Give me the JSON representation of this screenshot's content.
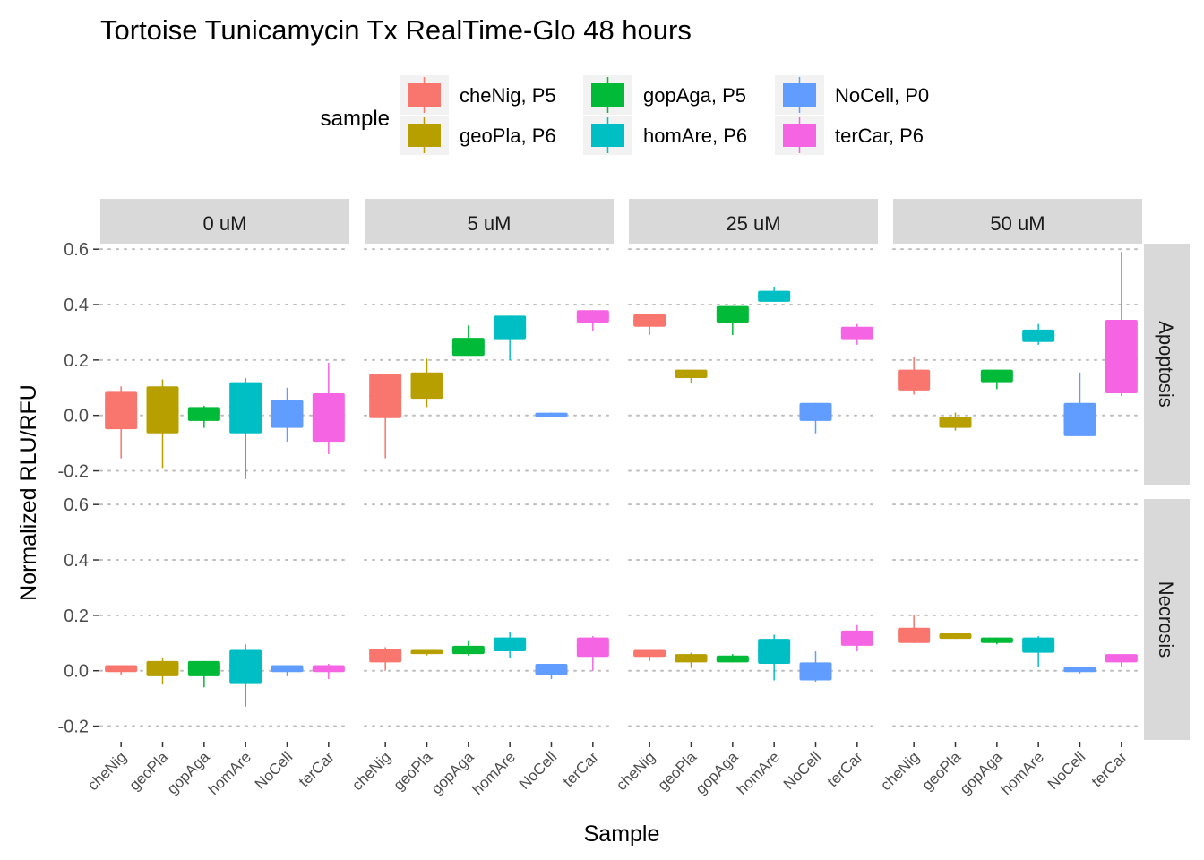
{
  "chart_data": {
    "type": "boxplot",
    "title": "Tortoise Tunicamycin Tx RealTime-Glo 48 hours",
    "xlabel": "Sample",
    "ylabel": "Normalized RLU/RFU",
    "ylim": [
      -0.25,
      0.62
    ],
    "yticks": [
      -0.2,
      0.0,
      0.2,
      0.4,
      0.6
    ],
    "ytick_labels": [
      "-0.2",
      "0.0",
      "0.2",
      "0.4",
      "0.6"
    ],
    "grid": "dotted horizontal",
    "legend": {
      "title": "sample",
      "position": "top",
      "entries": [
        {
          "label": "cheNig, P5",
          "color": "#F8766D"
        },
        {
          "label": "geoPla, P6",
          "color": "#B79F00"
        },
        {
          "label": "gopAga, P5",
          "color": "#00BA38"
        },
        {
          "label": "homAre, P6",
          "color": "#00BFC4"
        },
        {
          "label": "NoCell, P0",
          "color": "#619CFF"
        },
        {
          "label": "terCar, P6",
          "color": "#F564E3"
        }
      ]
    },
    "categories": [
      "cheNig",
      "geoPla",
      "gopAga",
      "homAre",
      "NoCell",
      "terCar"
    ],
    "col_facets": [
      "0 uM",
      "5 uM",
      "25 uM",
      "50 uM"
    ],
    "row_facets": [
      "Apoptosis",
      "Necrosis"
    ],
    "boxes_format": "[ymin, lower, middle, upper, ymax]",
    "panels": [
      {
        "row": "Apoptosis",
        "col": "0 uM",
        "boxes": [
          [
            -0.155,
            -0.05,
            0.02,
            0.085,
            0.105
          ],
          [
            -0.19,
            -0.065,
            0.02,
            0.105,
            0.13
          ],
          [
            -0.045,
            -0.02,
            0.01,
            0.03,
            0.035
          ],
          [
            -0.23,
            -0.065,
            0.03,
            0.12,
            0.135
          ],
          [
            -0.095,
            -0.045,
            0.0,
            0.055,
            0.1
          ],
          [
            -0.14,
            -0.095,
            0.0,
            0.08,
            0.19
          ]
        ]
      },
      {
        "row": "Apoptosis",
        "col": "5 uM",
        "boxes": [
          [
            -0.155,
            -0.01,
            0.07,
            0.15,
            0.15
          ],
          [
            0.03,
            0.06,
            0.1,
            0.155,
            0.205
          ],
          [
            0.215,
            0.215,
            0.25,
            0.28,
            0.325
          ],
          [
            0.2,
            0.275,
            0.31,
            0.36,
            0.36
          ],
          [
            -0.005,
            -0.005,
            0.005,
            0.01,
            0.01
          ],
          [
            0.305,
            0.335,
            0.355,
            0.38,
            0.38
          ]
        ]
      },
      {
        "row": "Apoptosis",
        "col": "25 uM",
        "boxes": [
          [
            0.29,
            0.32,
            0.34,
            0.365,
            0.365
          ],
          [
            0.115,
            0.135,
            0.15,
            0.165,
            0.165
          ],
          [
            0.29,
            0.335,
            0.365,
            0.395,
            0.395
          ],
          [
            0.41,
            0.41,
            0.43,
            0.45,
            0.465
          ],
          [
            -0.065,
            -0.02,
            0.01,
            0.045,
            0.045
          ],
          [
            0.255,
            0.275,
            0.3,
            0.32,
            0.33
          ]
        ]
      },
      {
        "row": "Apoptosis",
        "col": "50 uM",
        "boxes": [
          [
            0.075,
            0.09,
            0.12,
            0.165,
            0.21
          ],
          [
            -0.055,
            -0.045,
            -0.025,
            -0.005,
            0.01
          ],
          [
            0.095,
            0.12,
            0.145,
            0.165,
            0.165
          ],
          [
            0.255,
            0.265,
            0.29,
            0.31,
            0.33
          ],
          [
            -0.075,
            -0.075,
            -0.01,
            0.045,
            0.155
          ],
          [
            0.07,
            0.08,
            0.2,
            0.345,
            0.59
          ]
        ]
      },
      {
        "row": "Necrosis",
        "col": "0 uM",
        "boxes": [
          [
            -0.015,
            -0.005,
            0.005,
            0.02,
            0.02
          ],
          [
            -0.05,
            -0.02,
            0.01,
            0.035,
            0.045
          ],
          [
            -0.06,
            -0.02,
            0.01,
            0.035,
            0.035
          ],
          [
            -0.13,
            -0.045,
            0.02,
            0.075,
            0.095
          ],
          [
            -0.02,
            -0.005,
            0.005,
            0.02,
            0.02
          ],
          [
            -0.03,
            -0.005,
            0.005,
            0.02,
            0.025
          ]
        ]
      },
      {
        "row": "Necrosis",
        "col": "5 uM",
        "boxes": [
          [
            0.0,
            0.03,
            0.06,
            0.08,
            0.085
          ],
          [
            0.055,
            0.06,
            0.065,
            0.075,
            0.075
          ],
          [
            0.055,
            0.06,
            0.075,
            0.09,
            0.11
          ],
          [
            0.045,
            0.07,
            0.1,
            0.12,
            0.14
          ],
          [
            -0.03,
            -0.015,
            0.01,
            0.025,
            0.025
          ],
          [
            0.0,
            0.05,
            0.09,
            0.12,
            0.125
          ]
        ]
      },
      {
        "row": "Necrosis",
        "col": "25 uM",
        "boxes": [
          [
            0.035,
            0.05,
            0.06,
            0.075,
            0.075
          ],
          [
            0.01,
            0.03,
            0.045,
            0.06,
            0.065
          ],
          [
            0.03,
            0.03,
            0.04,
            0.055,
            0.06
          ],
          [
            -0.035,
            0.025,
            0.07,
            0.115,
            0.13
          ],
          [
            -0.04,
            -0.035,
            0.0,
            0.03,
            0.07
          ],
          [
            0.07,
            0.09,
            0.12,
            0.145,
            0.165
          ]
        ]
      },
      {
        "row": "Necrosis",
        "col": "50 uM",
        "boxes": [
          [
            0.1,
            0.1,
            0.13,
            0.155,
            0.2
          ],
          [
            0.115,
            0.115,
            0.125,
            0.135,
            0.135
          ],
          [
            0.095,
            0.1,
            0.11,
            0.12,
            0.12
          ],
          [
            0.015,
            0.065,
            0.09,
            0.12,
            0.125
          ],
          [
            -0.01,
            -0.005,
            0.005,
            0.015,
            0.015
          ],
          [
            0.015,
            0.03,
            0.045,
            0.06,
            0.06
          ]
        ]
      }
    ]
  }
}
